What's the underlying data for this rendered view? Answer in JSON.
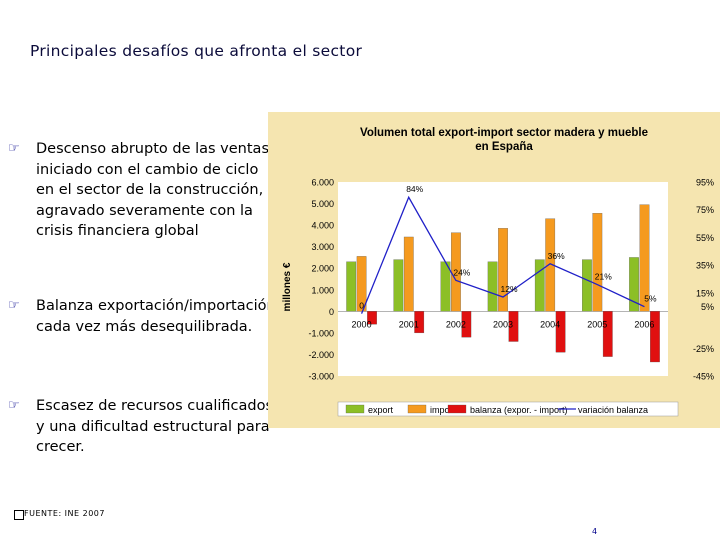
{
  "page": {
    "title": "Principales desafíos que afronta el sector",
    "bullets": [
      "Descenso abrupto de las ventas, iniciado con el cambio de ciclo en el sector de la construcción, y agravado severamente con la crisis financiera global",
      "Balanza exportación/importación cada vez más desequilibrada.",
      "Escasez de recursos cualificados y una dificultad estructural para crecer."
    ],
    "bullet_icon": "pointing-hand-icon",
    "footer": "FUENTE: INE 2007",
    "page_number": "4"
  },
  "colors": {
    "export": "#8cbf26",
    "import": "#f59a1f",
    "balanza": "#e01010",
    "variacion": "#2020c8",
    "chart_bg": "#f5e5b0",
    "plot_bg": "#ffffff"
  },
  "chart_data": {
    "type": "bar",
    "title": "Volumen total export-import sector madera y mueble en España",
    "ylabel": "millones €",
    "xlabel": "",
    "categories": [
      "2000",
      "2001",
      "2002",
      "2003",
      "2004",
      "2005",
      "2006"
    ],
    "ylim": [
      -3000,
      6000
    ],
    "y_ticks": [
      6000,
      5000,
      4000,
      3000,
      2000,
      1000,
      0,
      -1000,
      -2000,
      -3000
    ],
    "y_tick_labels": [
      "6.000",
      "5.000",
      "4.000",
      "3.000",
      "2.000",
      "1.000",
      "0",
      "-1.000",
      "-2.000",
      "-3.000"
    ],
    "y2lim": [
      -45,
      95
    ],
    "y2_ticks": [
      95,
      75,
      55,
      35,
      15,
      5,
      -25,
      -45
    ],
    "y2_tick_labels": [
      "95%",
      "75%",
      "55%",
      "35%",
      "15%",
      "5%",
      "-25%",
      "-45%"
    ],
    "series": [
      {
        "name": "export",
        "type": "bar",
        "values": [
          2300,
          2400,
          2300,
          2300,
          2400,
          2400,
          2500
        ]
      },
      {
        "name": "import",
        "type": "bar",
        "values": [
          2550,
          3450,
          3650,
          3850,
          4300,
          4550,
          4950
        ]
      },
      {
        "name": "balanza (expor. - import)",
        "type": "bar",
        "values": [
          -600,
          -1000,
          -1200,
          -1400,
          -1900,
          -2100,
          -2350
        ]
      },
      {
        "name": "variación balanza",
        "type": "line",
        "axis": "secondary",
        "values": [
          0,
          84,
          24,
          12,
          36,
          21,
          5
        ]
      }
    ],
    "line_labels": [
      "0",
      "84%",
      "24%",
      "12%",
      "36%",
      "21%",
      "5%"
    ],
    "legend": [
      "export",
      "import",
      "balanza (expor. - import)",
      "variación balanza"
    ],
    "legend_position": "bottom"
  }
}
